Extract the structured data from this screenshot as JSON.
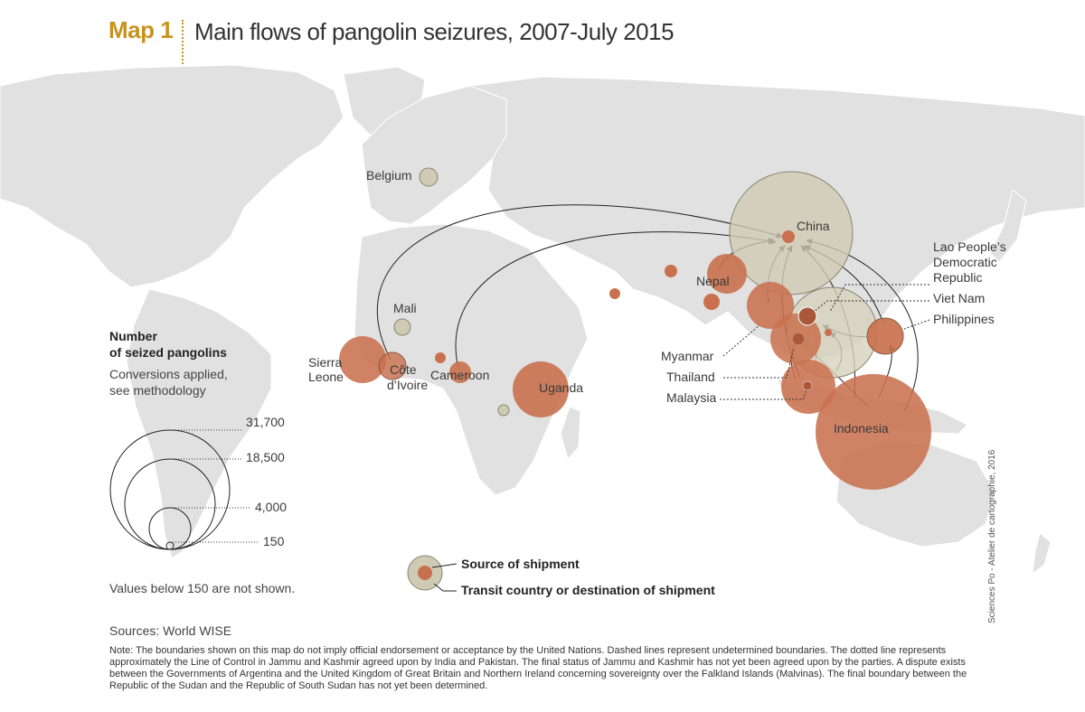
{
  "header": {
    "map_number": "Map 1",
    "title": "Main flows of pangolin seizures, 2007-July 2015"
  },
  "colors": {
    "source_fill": "#c9714e",
    "transit_fill": "#cfcab3",
    "land": "#e1e1e1",
    "accent": "#c8921e"
  },
  "places": {
    "belgium": "Belgium",
    "china": "China",
    "lao_1": "Lao People’s",
    "lao_2": "Democratic",
    "lao_3": "Republic",
    "viet_nam": "Viet Nam",
    "philippines": "Philippines",
    "nepal": "Nepal",
    "mali": "Mali",
    "sierra_leone_1": "Sierra",
    "sierra_leone_2": "Leone",
    "cote_divoire_1": "Côte",
    "cote_divoire_2": "d’Ivoire",
    "cameroon": "Cameroon",
    "uganda": "Uganda",
    "myanmar": "Myanmar",
    "thailand": "Thailand",
    "malaysia": "Malaysia",
    "indonesia": "Indonesia"
  },
  "legend": {
    "title_1": "Number",
    "title_2": "of seized pangolins",
    "sub_1": "Conversions applied,",
    "sub_2": "see methodology",
    "values": [
      "31,700",
      "18,500",
      "4,000",
      "150"
    ],
    "below_note": "Values below 150 are not shown.",
    "source_label": "Source of shipment",
    "transit_label": "Transit country or destination of shipment"
  },
  "sources": "Sources: World WISE",
  "note": "Note: The boundaries shown on this map do not imply official endorsement or acceptance by the United Nations. Dashed lines represent undetermined boundaries. The dotted line represents approximately the Line of Control in Jammu and Kashmir agreed upon by India and Pakistan. The final status of Jammu and Kashmir has not yet been agreed upon by the parties. A dispute exists between the Governments of Argentina and the United Kingdom of Great Britain and Northern Ireland concerning sovereignty over the Falkland Islands (Malvinas). The final boundary between the Republic of the Sudan and the Republic of South Sudan has not yet been determined.",
  "credit": "Sciences Po - Atelier de cartographie, 2016"
}
